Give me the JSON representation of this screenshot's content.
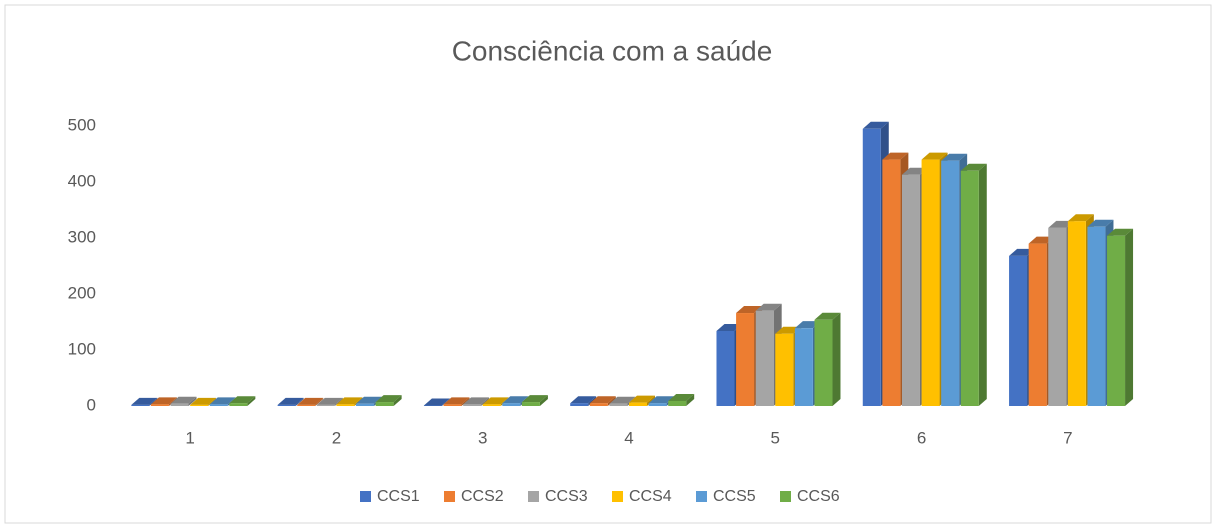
{
  "chart_data": {
    "type": "bar3d",
    "title": "Consciência com a saúde",
    "categories": [
      "1",
      "2",
      "3",
      "4",
      "5",
      "6",
      "7"
    ],
    "series": [
      {
        "name": "CCS1",
        "color": "#4472c4",
        "values": [
          2,
          2,
          1,
          5,
          134,
          495,
          268
        ]
      },
      {
        "name": "CCS2",
        "color": "#ed7d31",
        "values": [
          3,
          2,
          3,
          5,
          166,
          440,
          290
        ]
      },
      {
        "name": "CCS3",
        "color": "#a5a5a5",
        "values": [
          4,
          2,
          3,
          4,
          170,
          413,
          318
        ]
      },
      {
        "name": "CCS4",
        "color": "#ffc000",
        "values": [
          2,
          3,
          3,
          6,
          129,
          440,
          330
        ]
      },
      {
        "name": "CCS5",
        "color": "#5b9bd5",
        "values": [
          3,
          4,
          5,
          5,
          139,
          438,
          320
        ]
      },
      {
        "name": "CCS6",
        "color": "#70ad47",
        "values": [
          5,
          7,
          7,
          9,
          154,
          420,
          304
        ]
      }
    ],
    "ylim": [
      0,
      500
    ],
    "yticks": [
      0,
      100,
      200,
      300,
      400,
      500
    ],
    "grid": false,
    "legend": "bottom"
  }
}
